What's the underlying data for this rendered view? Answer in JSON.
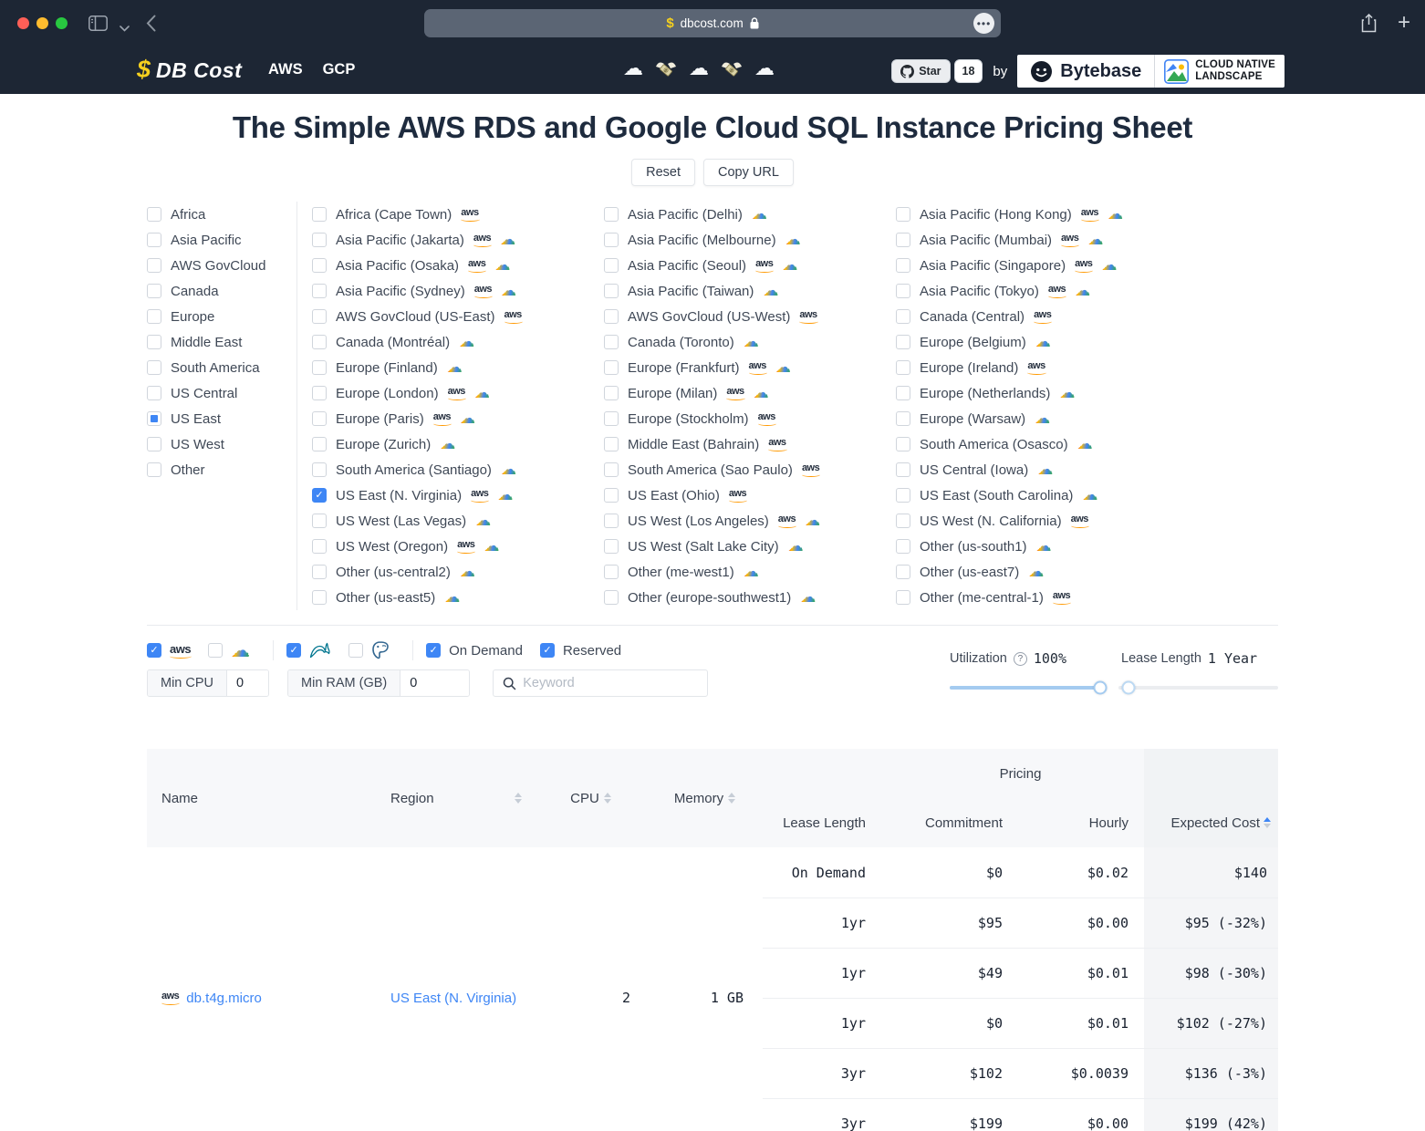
{
  "browser": {
    "url": "dbcost.com"
  },
  "navbar": {
    "brand_dollar": "$",
    "brand_name": "DB Cost",
    "nav_links": [
      {
        "label": "AWS"
      },
      {
        "label": "GCP"
      }
    ],
    "decor_icons": [
      "cloud",
      "money-wings",
      "cloud",
      "money-wings",
      "cloud"
    ],
    "github": {
      "star_label": "Star",
      "star_count": "18"
    },
    "by_label": "by",
    "bytebase_label": "Bytebase",
    "landscape_line1": "CLOUD NATIVE",
    "landscape_line2": "LANDSCAPE"
  },
  "header": {
    "title": "The Simple AWS RDS and Google Cloud SQL Instance Pricing Sheet",
    "reset_label": "Reset",
    "copy_url_label": "Copy URL"
  },
  "region_groups": [
    {
      "label": "Africa",
      "state": "unchecked"
    },
    {
      "label": "Asia Pacific",
      "state": "unchecked"
    },
    {
      "label": "AWS GovCloud",
      "state": "unchecked"
    },
    {
      "label": "Canada",
      "state": "unchecked"
    },
    {
      "label": "Europe",
      "state": "unchecked"
    },
    {
      "label": "Middle East",
      "state": "unchecked"
    },
    {
      "label": "South America",
      "state": "unchecked"
    },
    {
      "label": "US Central",
      "state": "unchecked"
    },
    {
      "label": "US East",
      "state": "indeterminate"
    },
    {
      "label": "US West",
      "state": "unchecked"
    },
    {
      "label": "Other",
      "state": "unchecked"
    }
  ],
  "region_columns": [
    [
      {
        "label": "Africa (Cape Town)",
        "providers": [
          "aws"
        ],
        "state": "unchecked"
      },
      {
        "label": "Asia Pacific (Jakarta)",
        "providers": [
          "aws",
          "gcp"
        ],
        "state": "unchecked"
      },
      {
        "label": "Asia Pacific (Osaka)",
        "providers": [
          "aws",
          "gcp"
        ],
        "state": "unchecked"
      },
      {
        "label": "Asia Pacific (Sydney)",
        "providers": [
          "aws",
          "gcp"
        ],
        "state": "unchecked"
      },
      {
        "label": "AWS GovCloud (US-East)",
        "providers": [
          "aws"
        ],
        "state": "unchecked"
      },
      {
        "label": "Canada (Montréal)",
        "providers": [
          "gcp"
        ],
        "state": "unchecked"
      },
      {
        "label": "Europe (Finland)",
        "providers": [
          "gcp"
        ],
        "state": "unchecked"
      },
      {
        "label": "Europe (London)",
        "providers": [
          "aws",
          "gcp"
        ],
        "state": "unchecked"
      },
      {
        "label": "Europe (Paris)",
        "providers": [
          "aws",
          "gcp"
        ],
        "state": "unchecked"
      },
      {
        "label": "Europe (Zurich)",
        "providers": [
          "gcp"
        ],
        "state": "unchecked"
      },
      {
        "label": "South America (Santiago)",
        "providers": [
          "gcp"
        ],
        "state": "unchecked"
      },
      {
        "label": "US East (N. Virginia)",
        "providers": [
          "aws",
          "gcp"
        ],
        "state": "checked"
      },
      {
        "label": "US West (Las Vegas)",
        "providers": [
          "gcp"
        ],
        "state": "unchecked"
      },
      {
        "label": "US West (Oregon)",
        "providers": [
          "aws",
          "gcp"
        ],
        "state": "unchecked"
      },
      {
        "label": "Other (us-central2)",
        "providers": [
          "gcp"
        ],
        "state": "unchecked"
      },
      {
        "label": "Other (us-east5)",
        "providers": [
          "gcp"
        ],
        "state": "unchecked"
      }
    ],
    [
      {
        "label": "Asia Pacific (Delhi)",
        "providers": [
          "gcp"
        ],
        "state": "unchecked"
      },
      {
        "label": "Asia Pacific (Melbourne)",
        "providers": [
          "gcp"
        ],
        "state": "unchecked"
      },
      {
        "label": "Asia Pacific (Seoul)",
        "providers": [
          "aws",
          "gcp"
        ],
        "state": "unchecked"
      },
      {
        "label": "Asia Pacific (Taiwan)",
        "providers": [
          "gcp"
        ],
        "state": "unchecked"
      },
      {
        "label": "AWS GovCloud (US-West)",
        "providers": [
          "aws"
        ],
        "state": "unchecked"
      },
      {
        "label": "Canada (Toronto)",
        "providers": [
          "gcp"
        ],
        "state": "unchecked"
      },
      {
        "label": "Europe (Frankfurt)",
        "providers": [
          "aws",
          "gcp"
        ],
        "state": "unchecked"
      },
      {
        "label": "Europe (Milan)",
        "providers": [
          "aws",
          "gcp"
        ],
        "state": "unchecked"
      },
      {
        "label": "Europe (Stockholm)",
        "providers": [
          "aws"
        ],
        "state": "unchecked"
      },
      {
        "label": "Middle East (Bahrain)",
        "providers": [
          "aws"
        ],
        "state": "unchecked"
      },
      {
        "label": "South America (Sao Paulo)",
        "providers": [
          "aws"
        ],
        "state": "unchecked"
      },
      {
        "label": "US East (Ohio)",
        "providers": [
          "aws"
        ],
        "state": "unchecked"
      },
      {
        "label": "US West (Los Angeles)",
        "providers": [
          "aws",
          "gcp"
        ],
        "state": "unchecked"
      },
      {
        "label": "US West (Salt Lake City)",
        "providers": [
          "gcp"
        ],
        "state": "unchecked"
      },
      {
        "label": "Other (me-west1)",
        "providers": [
          "gcp"
        ],
        "state": "unchecked"
      },
      {
        "label": "Other (europe-southwest1)",
        "providers": [
          "gcp"
        ],
        "state": "unchecked"
      }
    ],
    [
      {
        "label": "Asia Pacific (Hong Kong)",
        "providers": [
          "aws",
          "gcp"
        ],
        "state": "unchecked"
      },
      {
        "label": "Asia Pacific (Mumbai)",
        "providers": [
          "aws",
          "gcp"
        ],
        "state": "unchecked"
      },
      {
        "label": "Asia Pacific (Singapore)",
        "providers": [
          "aws",
          "gcp"
        ],
        "state": "unchecked"
      },
      {
        "label": "Asia Pacific (Tokyo)",
        "providers": [
          "aws",
          "gcp"
        ],
        "state": "unchecked"
      },
      {
        "label": "Canada (Central)",
        "providers": [
          "aws"
        ],
        "state": "unchecked"
      },
      {
        "label": "Europe (Belgium)",
        "providers": [
          "gcp"
        ],
        "state": "unchecked"
      },
      {
        "label": "Europe (Ireland)",
        "providers": [
          "aws"
        ],
        "state": "unchecked"
      },
      {
        "label": "Europe (Netherlands)",
        "providers": [
          "gcp"
        ],
        "state": "unchecked"
      },
      {
        "label": "Europe (Warsaw)",
        "providers": [
          "gcp"
        ],
        "state": "unchecked"
      },
      {
        "label": "South America (Osasco)",
        "providers": [
          "gcp"
        ],
        "state": "unchecked"
      },
      {
        "label": "US Central (Iowa)",
        "providers": [
          "gcp"
        ],
        "state": "unchecked"
      },
      {
        "label": "US East (South Carolina)",
        "providers": [
          "gcp"
        ],
        "state": "unchecked"
      },
      {
        "label": "US West (N. California)",
        "providers": [
          "aws"
        ],
        "state": "unchecked"
      },
      {
        "label": "Other (us-south1)",
        "providers": [
          "gcp"
        ],
        "state": "unchecked"
      },
      {
        "label": "Other (us-east7)",
        "providers": [
          "gcp"
        ],
        "state": "unchecked"
      },
      {
        "label": "Other (me-central-1)",
        "providers": [
          "aws"
        ],
        "state": "unchecked"
      }
    ]
  ],
  "filters": {
    "providers": [
      {
        "name": "aws",
        "state": "checked"
      },
      {
        "name": "gcp",
        "state": "unchecked"
      }
    ],
    "engines": [
      {
        "name": "mysql",
        "state": "checked"
      },
      {
        "name": "postgres",
        "state": "unchecked"
      }
    ],
    "charge_types": [
      {
        "label": "On Demand",
        "state": "checked"
      },
      {
        "label": "Reserved",
        "state": "checked"
      }
    ],
    "min_cpu_label": "Min CPU",
    "min_cpu_value": "0",
    "min_ram_label": "Min RAM (GB)",
    "min_ram_value": "0",
    "keyword_placeholder": "Keyword",
    "utilization_label": "Utilization",
    "utilization_value": "100%",
    "utilization_pct": 100,
    "lease_label": "Lease Length",
    "lease_value": "1 Year",
    "lease_pct": 6
  },
  "table": {
    "pricing_group_label": "Pricing",
    "col_name": "Name",
    "col_region": "Region",
    "col_cpu": "CPU",
    "col_memory": "Memory",
    "col_lease": "Lease Length",
    "col_commitment": "Commitment",
    "col_hourly": "Hourly",
    "col_expected": "Expected Cost",
    "instance": {
      "provider": "aws",
      "name": "db.t4g.micro",
      "region": "US East (N. Virginia)",
      "cpu": "2",
      "memory": "1 GB"
    },
    "pricing_rows": [
      {
        "lease": "On Demand",
        "commitment": "$0",
        "hourly": "$0.02",
        "expected": "$140"
      },
      {
        "lease": "1yr",
        "commitment": "$95",
        "hourly": "$0.00",
        "expected": "$95 (-32%)"
      },
      {
        "lease": "1yr",
        "commitment": "$49",
        "hourly": "$0.01",
        "expected": "$98 (-30%)"
      },
      {
        "lease": "1yr",
        "commitment": "$0",
        "hourly": "$0.01",
        "expected": "$102 (-27%)"
      },
      {
        "lease": "3yr",
        "commitment": "$102",
        "hourly": "$0.0039",
        "expected": "$136 (-3%)"
      },
      {
        "lease": "3yr",
        "commitment": "$199",
        "hourly": "$0.00",
        "expected": "$199 (42%)"
      }
    ]
  },
  "colors": {
    "accent_blue": "#3e86f5",
    "nav_bg": "#1d2634",
    "aws_orange": "#ff9900",
    "mysql_teal": "#00758f",
    "postgres_blue": "#336791",
    "brand_yellow": "#f5d01e"
  }
}
